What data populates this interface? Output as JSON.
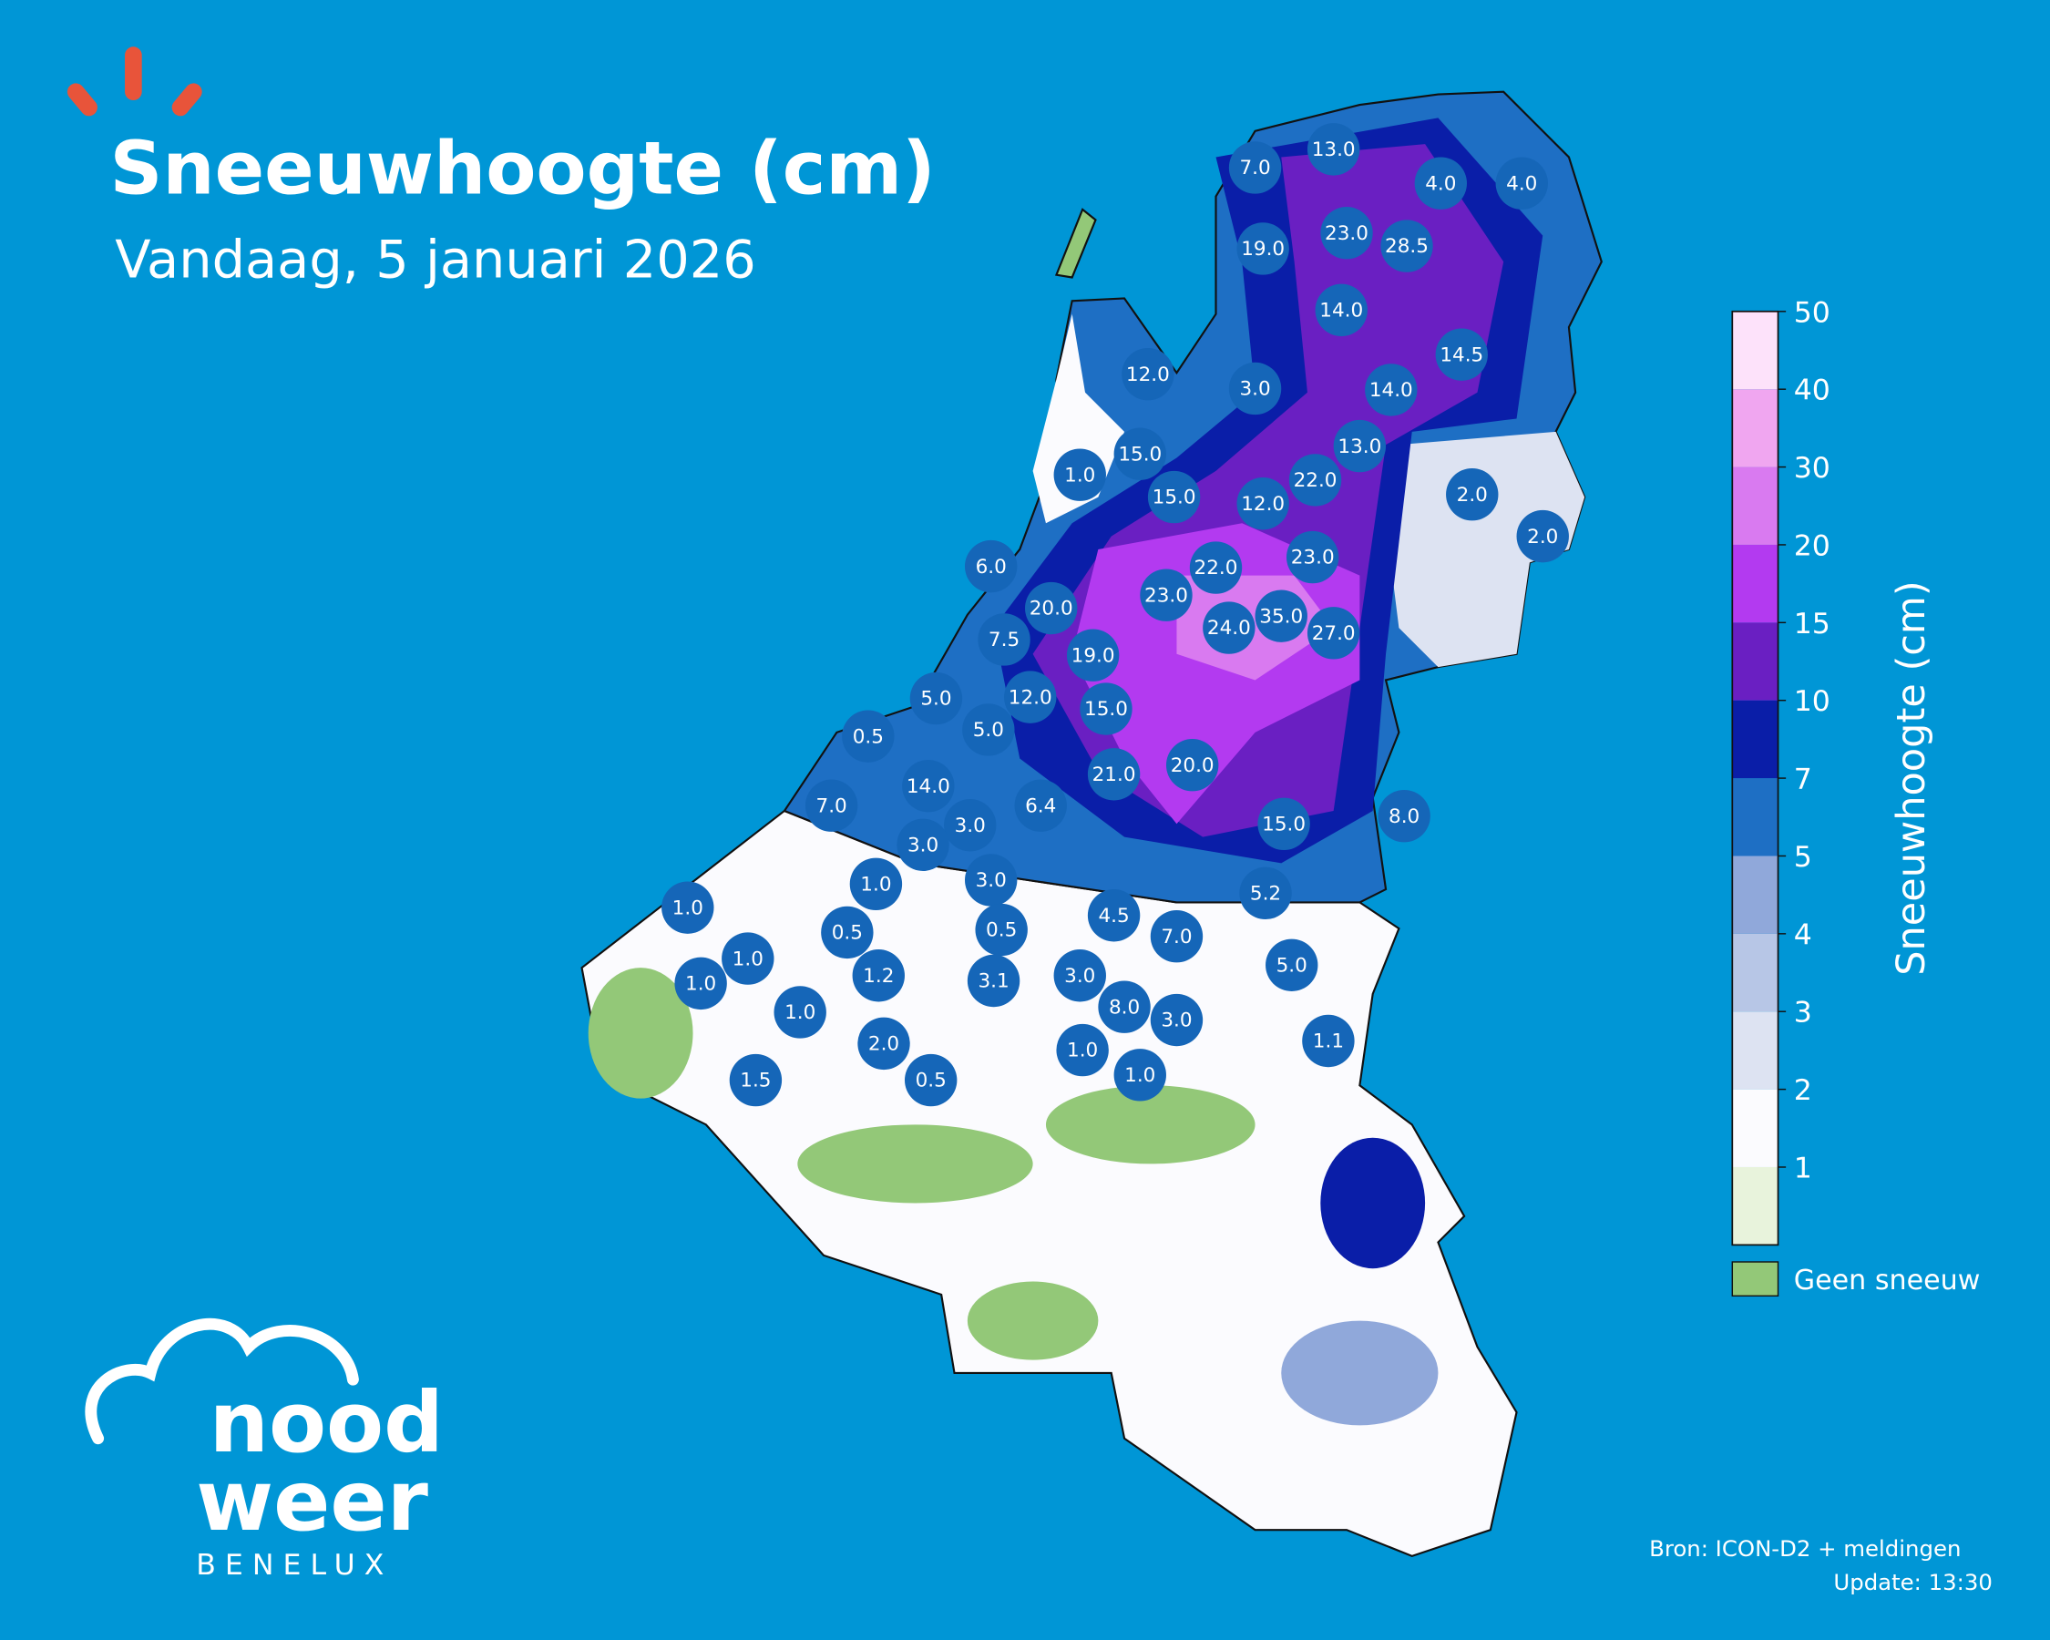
{
  "header": {
    "title": "Sneeuwhoogte (cm)",
    "subtitle": "Vandaag, 5 januari 2026"
  },
  "stations": [
    "7.0",
    "13.0",
    "4.0",
    "4.0",
    "19.0",
    "23.0",
    "28.5",
    "14.0",
    "14.5",
    "12.0",
    "3.0",
    "14.0",
    "15.0",
    "13.0",
    "1.0",
    "22.0",
    "15.0",
    "12.0",
    "2.0",
    "2.0",
    "6.0",
    "22.0",
    "23.0",
    "23.0",
    "20.0",
    "35.0",
    "24.0",
    "27.0",
    "7.5",
    "19.0",
    "5.0",
    "12.0",
    "15.0",
    "5.0",
    "0.5",
    "21.0",
    "20.0",
    "14.0",
    "7.0",
    "6.4",
    "3.0",
    "15.0",
    "8.0",
    "3.0",
    "3.0",
    "1.0",
    "5.2",
    "1.0",
    "4.5",
    "0.5",
    "0.5",
    "7.0",
    "1.0",
    "1.2",
    "5.0",
    "1.0",
    "3.1",
    "3.0",
    "8.0",
    "1.0",
    "3.0",
    "1.1",
    "2.0",
    "1.0",
    "1.5",
    "0.5",
    "1.0"
  ],
  "legend": {
    "title": "Sneeuwhoogte (cm)",
    "ticks": [
      1,
      2,
      3,
      4,
      5,
      7,
      10,
      15,
      20,
      30,
      40,
      50
    ],
    "colors": [
      "#e8f3dc",
      "#fbfbfe",
      "#dde3f2",
      "#b7c6e6",
      "#90a8da",
      "#1e6fc4",
      "#0a1ea8",
      "#6a1fc2",
      "#b33af0",
      "#d97af0",
      "#f0a6f0",
      "#fde2fa"
    ],
    "no_snow_label": "Geen sneeuw",
    "no_snow_color": "#93c878"
  },
  "logo": {
    "line1": "nood",
    "line2": "weer",
    "line3": "BENELUX"
  },
  "footer": {
    "source": "Bron: ICON-D2 + meldingen",
    "update": "Update: 13:30"
  }
}
